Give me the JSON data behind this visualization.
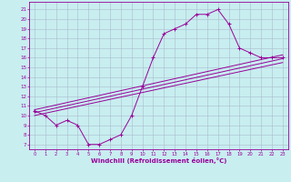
{
  "xlabel": "Windchill (Refroidissement éolien,°C)",
  "background_color": "#c8eef0",
  "line_color": "#990099",
  "grid_color": "#aabbcc",
  "xlim": [
    -0.5,
    23.5
  ],
  "ylim": [
    6.5,
    21.8
  ],
  "yticks": [
    7,
    8,
    9,
    10,
    11,
    12,
    13,
    14,
    15,
    16,
    17,
    18,
    19,
    20,
    21
  ],
  "xticks": [
    0,
    1,
    2,
    3,
    4,
    5,
    6,
    7,
    8,
    9,
    10,
    11,
    12,
    13,
    14,
    15,
    16,
    17,
    18,
    19,
    20,
    21,
    22,
    23
  ],
  "main_x": [
    0,
    1,
    2,
    3,
    4,
    5,
    6,
    7,
    8,
    9,
    10,
    11,
    12,
    13,
    14,
    15,
    16,
    17,
    18,
    19,
    20,
    21,
    22,
    23
  ],
  "main_y": [
    10.5,
    10,
    9,
    9.5,
    9,
    7,
    7,
    7.5,
    8,
    10,
    13,
    16,
    18.5,
    19,
    19.5,
    20.5,
    20.5,
    21,
    19.5,
    17,
    16.5,
    16,
    16,
    16
  ],
  "line1_x": [
    0,
    23
  ],
  "line1_y": [
    10.0,
    15.5
  ],
  "line2_x": [
    0,
    23
  ],
  "line2_y": [
    10.3,
    15.9
  ],
  "line3_x": [
    0,
    23
  ],
  "line3_y": [
    10.6,
    16.3
  ]
}
